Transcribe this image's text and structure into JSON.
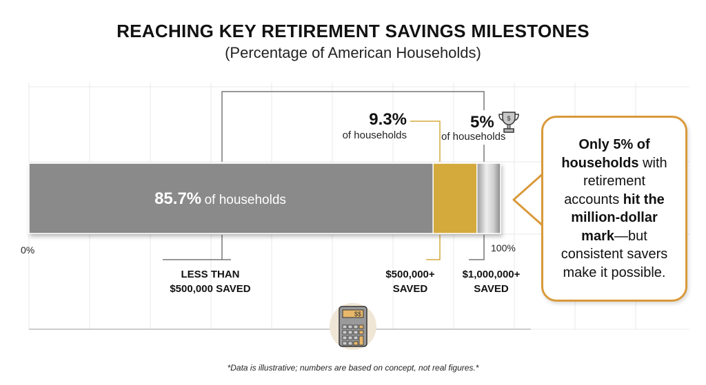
{
  "header": {
    "title": "REACHING KEY RETIREMENT SAVINGS MILESTONES",
    "subtitle": "(Percentage of American Households)"
  },
  "chart_data": {
    "type": "bar",
    "orientation": "horizontal-stacked",
    "categories": [
      "LESS THAN $500,000 SAVED",
      "$500,000+ SAVED",
      "$1,000,000+ SAVED"
    ],
    "values": [
      85.7,
      9.3,
      5
    ],
    "unit": "%",
    "xlim": [
      0,
      100
    ],
    "tick_labels": [
      "0%",
      "100%"
    ],
    "grid": true,
    "colors": [
      "#8a8a8a",
      "#d4aa3c",
      "#c8c8c8"
    ],
    "labels": [
      {
        "value": "85.7%",
        "text": "of households"
      },
      {
        "value": "9.3%",
        "text": "of households"
      },
      {
        "value": "5%",
        "text": "of households"
      }
    ]
  },
  "categories_display": {
    "c0": [
      "LESS THAN",
      "$500,000 SAVED"
    ],
    "c1": [
      "$500,000+",
      "SAVED"
    ],
    "c2": [
      "$1,000,000+",
      "SAVED"
    ]
  },
  "callout": {
    "parts": [
      {
        "t": "Only 5% of",
        "b": true
      },
      {
        "t": "households",
        "b": true
      },
      {
        "t": " with",
        "b": false
      },
      {
        "t": "retirement",
        "b": false
      },
      {
        "t": "accounts ",
        "b": false
      },
      {
        "t": "hit the",
        "b": true
      },
      {
        "t": "million-dollar",
        "b": true
      },
      {
        "t": "mark",
        "b": true
      },
      {
        "t": "—but",
        "b": false
      },
      {
        "t": "consistent savers",
        "b": false
      },
      {
        "t": "make it possible.",
        "b": false
      }
    ],
    "border_color": "#d9993a"
  },
  "icons": {
    "trophy": "trophy-icon",
    "calculator": "calculator-icon"
  },
  "calculator_display": "$$",
  "footnote": "*Data is illustrative; numbers are based on concept, not real figures.*"
}
